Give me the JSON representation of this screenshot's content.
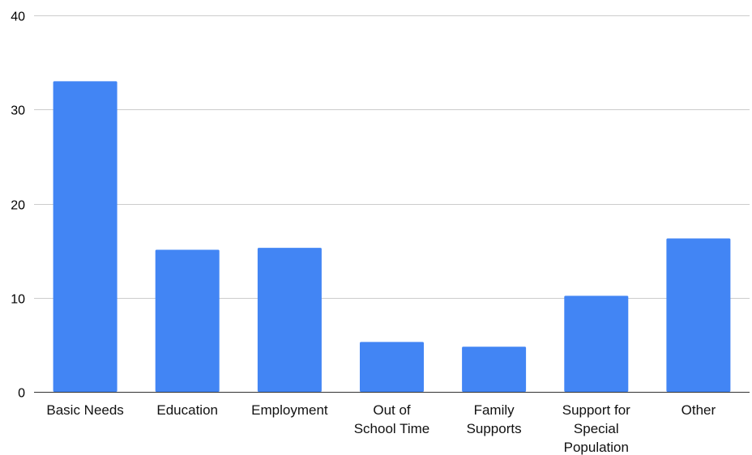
{
  "chart_data": {
    "type": "bar",
    "categories": [
      [
        "Basic Needs"
      ],
      [
        "Education"
      ],
      [
        "Employment"
      ],
      [
        "Out of",
        "School Time"
      ],
      [
        "Family",
        "Supports"
      ],
      [
        "Support for",
        "Special",
        "Population"
      ],
      [
        "Other"
      ]
    ],
    "values": [
      33,
      15.1,
      15.3,
      5.3,
      4.8,
      10.2,
      16.3
    ],
    "y_ticks": [
      "0",
      "10",
      "20",
      "30",
      "40"
    ],
    "ylim": [
      0,
      40
    ],
    "grid": true,
    "bar_color": "#4285f4",
    "title": "",
    "xlabel": "",
    "ylabel": ""
  }
}
